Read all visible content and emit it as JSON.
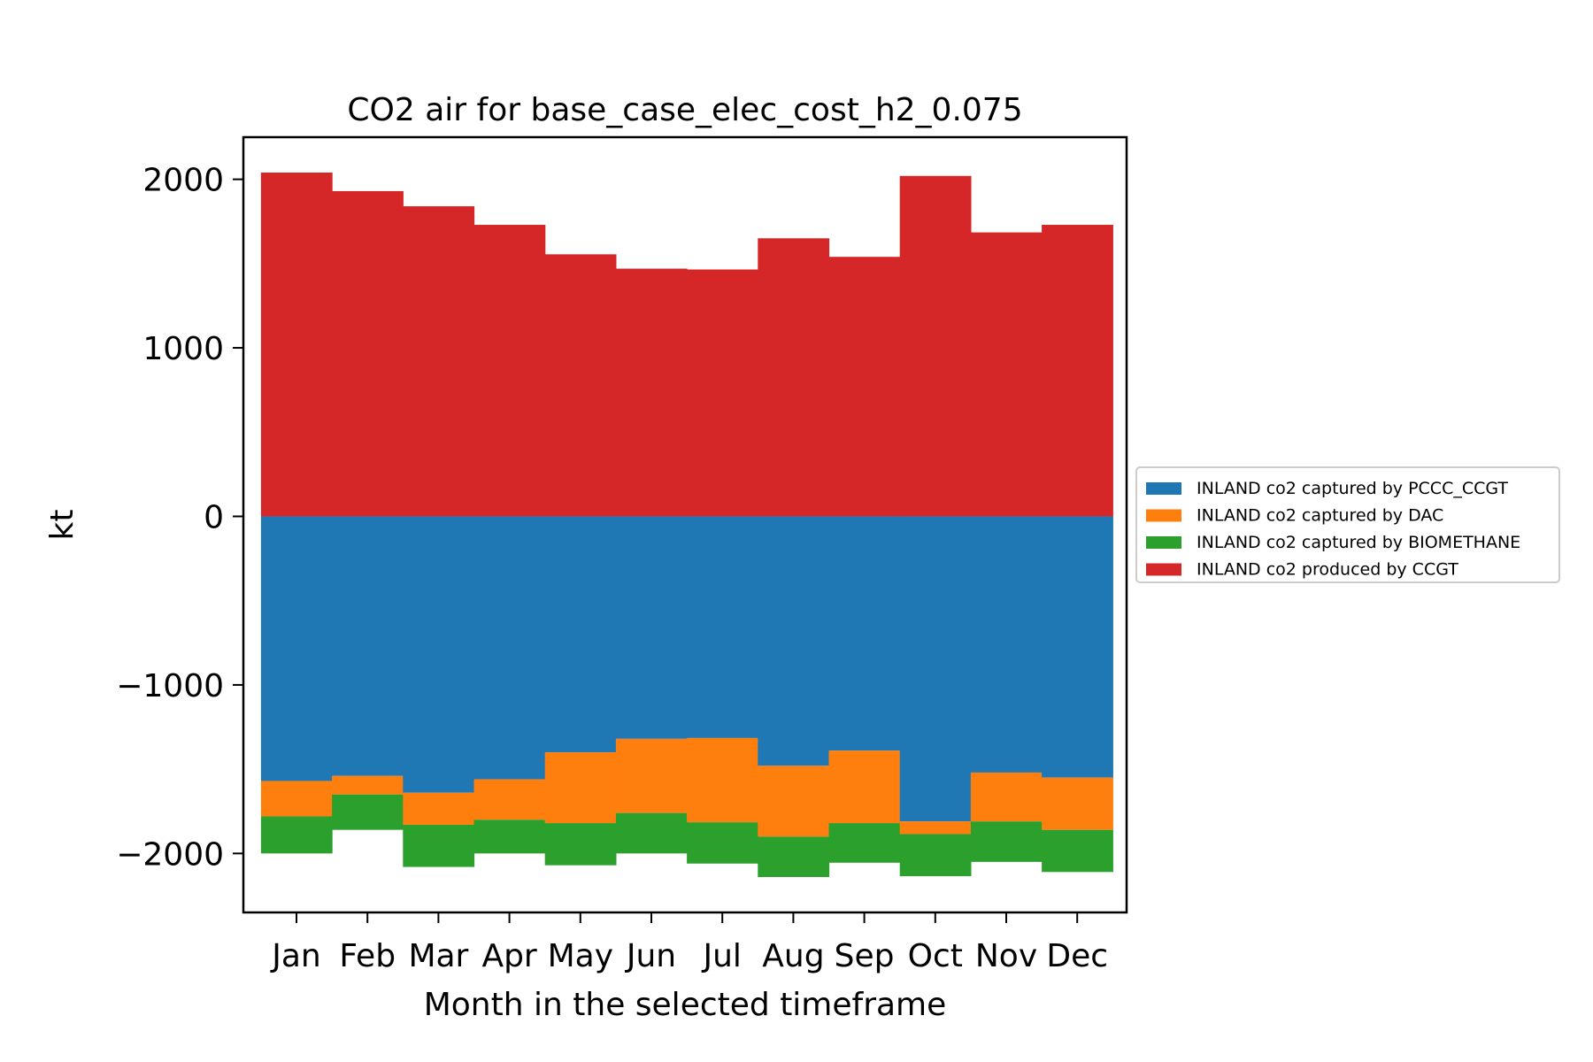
{
  "chart_data": {
    "type": "bar",
    "stacked": true,
    "title": "CO2 air for base_case_elec_cost_h2_0.075",
    "xlabel": "Month in the selected timeframe",
    "ylabel": "kt",
    "categories": [
      "Jan",
      "Feb",
      "Mar",
      "Apr",
      "May",
      "Jun",
      "Jul",
      "Aug",
      "Sep",
      "Oct",
      "Nov",
      "Dec"
    ],
    "ylim": [
      -2350,
      2250
    ],
    "yticks": [
      -2000,
      -1000,
      0,
      1000,
      2000
    ],
    "ytick_labels": [
      "−2000",
      "−1000",
      "0",
      "1000",
      "2000"
    ],
    "grid": false,
    "legend_position": "center-right, outside plot",
    "series": [
      {
        "name": "INLAND co2 captured by PCCC_CCGT",
        "color": "#1f77b4",
        "values": [
          -1570,
          -1540,
          -1640,
          -1560,
          -1400,
          -1320,
          -1315,
          -1480,
          -1390,
          -1810,
          -1520,
          -1550
        ]
      },
      {
        "name": "INLAND co2 captured by DAC",
        "color": "#ff7f0e",
        "values": [
          -210,
          -110,
          -190,
          -240,
          -420,
          -440,
          -500,
          -420,
          -430,
          -75,
          -290,
          -310
        ]
      },
      {
        "name": "INLAND co2 captured by BIOMETHANE",
        "color": "#2ca02c",
        "values": [
          -220,
          -210,
          -250,
          -200,
          -250,
          -240,
          -245,
          -240,
          -235,
          -250,
          -240,
          -250
        ]
      },
      {
        "name": "INLAND co2 produced by CCGT",
        "color": "#d62728",
        "values": [
          2040,
          1930,
          1840,
          1730,
          1555,
          1470,
          1465,
          1650,
          1540,
          2020,
          1685,
          1730
        ]
      }
    ]
  }
}
